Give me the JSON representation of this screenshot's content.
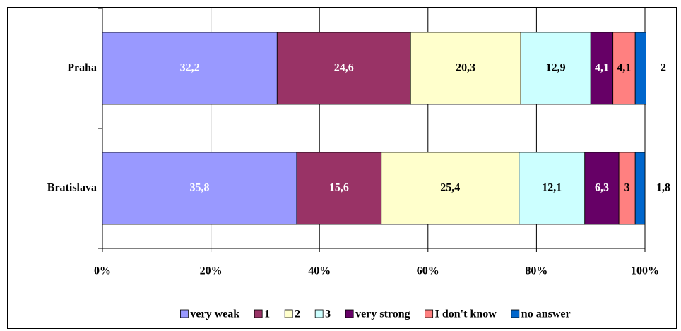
{
  "chart_data": {
    "type": "stacked_bar_horizontal",
    "categories": [
      "Praha",
      "Bratislava"
    ],
    "series": [
      {
        "name": "very weak",
        "color": "#9999ff",
        "label_color": "#ffffff",
        "values": [
          32.2,
          35.8
        ],
        "value_labels": [
          "32,2",
          "35,8"
        ]
      },
      {
        "name": "1",
        "color": "#993366",
        "label_color": "#ffffff",
        "values": [
          24.6,
          15.6
        ],
        "value_labels": [
          "24,6",
          "15,6"
        ]
      },
      {
        "name": "2",
        "color": "#ffffcc",
        "label_color": "#000000",
        "values": [
          20.3,
          25.4
        ],
        "value_labels": [
          "20,3",
          "25,4"
        ]
      },
      {
        "name": "3",
        "color": "#ccffff",
        "label_color": "#000000",
        "values": [
          12.9,
          12.1
        ],
        "value_labels": [
          "12,9",
          "12,1"
        ]
      },
      {
        "name": "very strong",
        "color": "#660066",
        "label_color": "#ffffff",
        "values": [
          4.1,
          6.3
        ],
        "value_labels": [
          "4,1",
          "6,3"
        ]
      },
      {
        "name": "I don't know",
        "color": "#ff8080",
        "label_color": "#000000",
        "values": [
          4.1,
          3
        ],
        "value_labels": [
          "4,1",
          "3"
        ]
      },
      {
        "name": "no answer",
        "color": "#0066cc",
        "label_color": "#000000",
        "values": [
          2,
          1.8
        ],
        "value_labels": [
          "2",
          "1,8"
        ]
      }
    ],
    "xlim": [
      0,
      100
    ],
    "xticks": [
      {
        "value": 0,
        "label": "0%"
      },
      {
        "value": 20,
        "label": "20%"
      },
      {
        "value": 40,
        "label": "40%"
      },
      {
        "value": 60,
        "label": "60%"
      },
      {
        "value": 80,
        "label": "80%"
      },
      {
        "value": 100,
        "label": "100%"
      }
    ],
    "grid": true,
    "legend": "bottom"
  }
}
